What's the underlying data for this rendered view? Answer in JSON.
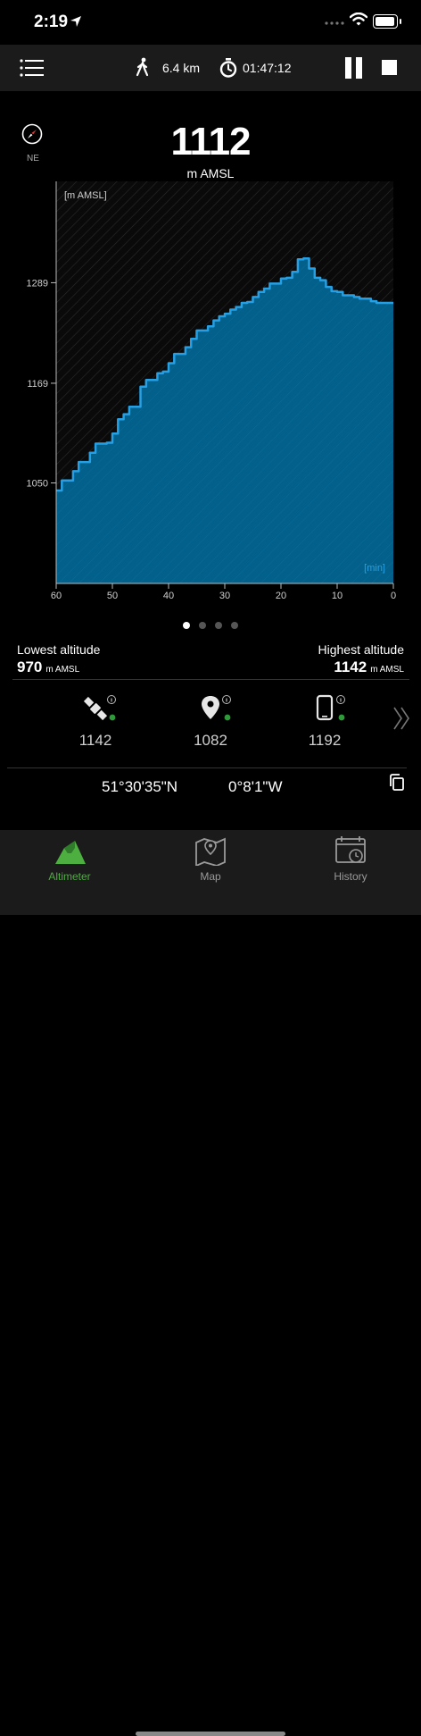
{
  "status_bar": {
    "time": "2:19"
  },
  "toolbar": {
    "distance": "6.4 km",
    "elapsed": "01:47:12"
  },
  "compass": {
    "direction": "NE"
  },
  "current": {
    "altitude": "1112",
    "unit": "m AMSL"
  },
  "chart_data": {
    "type": "area",
    "ylabel": "[m AMSL]",
    "xlabel": "[min]",
    "x_ticks": [
      "60",
      "50",
      "40",
      "30",
      "20",
      "10",
      "0"
    ],
    "y_ticks": [
      "1289",
      "1169",
      "1050"
    ],
    "y_tick_values": [
      1289,
      1169,
      1050
    ],
    "xlim": [
      60,
      0
    ],
    "ylim": [
      930,
      1410
    ],
    "x": [
      60,
      59,
      58,
      57,
      56,
      55,
      54,
      53,
      52,
      51,
      50,
      49,
      48,
      47,
      46,
      45,
      44,
      43,
      42,
      41,
      40,
      39,
      38,
      37,
      36,
      35,
      34,
      33,
      32,
      31,
      30,
      29,
      28,
      27,
      26,
      25,
      24,
      23,
      22,
      21,
      20,
      19,
      18,
      17,
      16,
      15,
      14,
      13,
      12,
      11,
      10,
      9,
      8,
      7,
      6,
      5,
      4,
      3,
      2,
      1,
      0
    ],
    "values": [
      1041,
      1053,
      1053,
      1064,
      1075,
      1075,
      1086,
      1097,
      1097,
      1098,
      1109,
      1126,
      1132,
      1141,
      1141,
      1165,
      1173,
      1173,
      1181,
      1183,
      1193,
      1204,
      1204,
      1212,
      1222,
      1232,
      1232,
      1237,
      1244,
      1249,
      1252,
      1257,
      1260,
      1265,
      1266,
      1272,
      1278,
      1282,
      1288,
      1288,
      1294,
      1295,
      1302,
      1317,
      1318,
      1306,
      1295,
      1292,
      1284,
      1279,
      1278,
      1274,
      1274,
      1272,
      1270,
      1270,
      1267,
      1265,
      1265,
      1265,
      1265
    ],
    "colors": {
      "fill": "#02608a",
      "line": "#26a0e4",
      "background": "#0a0a0a"
    }
  },
  "pager": {
    "count": 4,
    "active": 0
  },
  "stats": {
    "lowest_label": "Lowest altitude",
    "lowest_value": "970",
    "lowest_unit": "m AMSL",
    "highest_label": "Highest altitude",
    "highest_value": "1142",
    "highest_unit": "m AMSL"
  },
  "sources": [
    {
      "icon": "satellite-icon",
      "value": "1142"
    },
    {
      "icon": "map-pin-icon",
      "value": "1082"
    },
    {
      "icon": "phone-icon",
      "value": "1192"
    }
  ],
  "coords": {
    "lat": "51°30'35\"N",
    "lon": "0°8'1\"W"
  },
  "tabs": [
    {
      "label": "Altimeter",
      "icon": "mountain-icon",
      "active": true
    },
    {
      "label": "Map",
      "icon": "map-icon",
      "active": false
    },
    {
      "label": "History",
      "icon": "calendar-clock-icon",
      "active": false
    }
  ],
  "colors": {
    "accent": "#4caf3f",
    "indicator_dot": "#2e9a3a"
  }
}
